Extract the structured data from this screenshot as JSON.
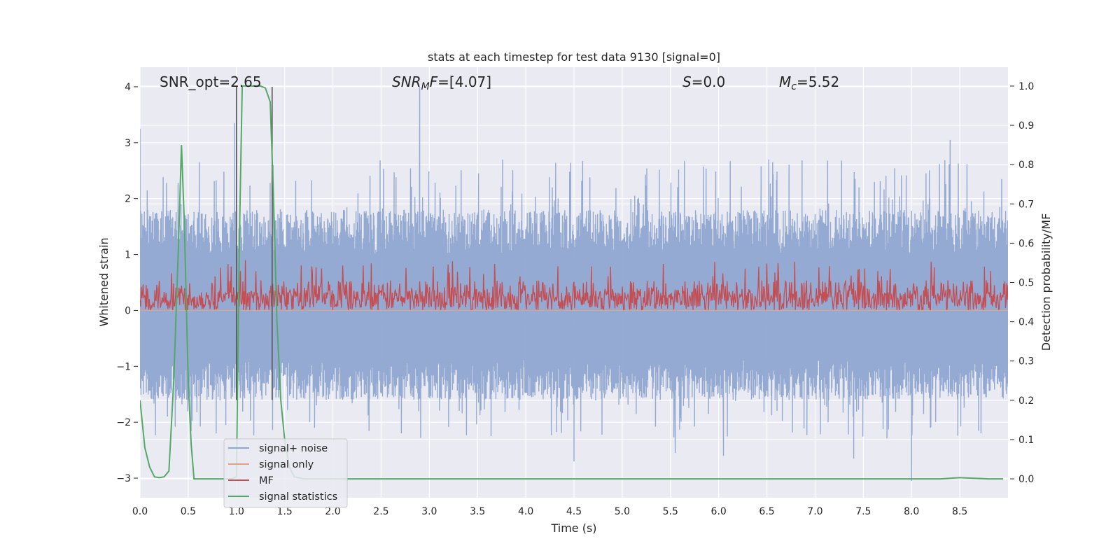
{
  "chart_data": {
    "type": "line",
    "title": "stats at each timestep for test data 9130 [signal=0]",
    "xlabel": "Time (s)",
    "ylabel_left": "Whitened strain",
    "ylabel_right": "Detection probability/MF",
    "xlim": [
      0.0,
      9.0
    ],
    "ylim_left": [
      -3.35,
      4.35
    ],
    "ylim_right": [
      -0.048,
      1.048
    ],
    "x_ticks": [
      "0.0",
      "0.5",
      "1.0",
      "1.5",
      "2.0",
      "2.5",
      "3.0",
      "3.5",
      "4.0",
      "4.5",
      "5.0",
      "5.5",
      "6.0",
      "6.5",
      "7.0",
      "7.5",
      "8.0",
      "8.5"
    ],
    "y_ticks_left": [
      "−3",
      "−2",
      "−1",
      "0",
      "1",
      "2",
      "3",
      "4"
    ],
    "y_ticks_right": [
      "0.0",
      "0.1",
      "0.2",
      "0.3",
      "0.4",
      "0.5",
      "0.6",
      "0.7",
      "0.8",
      "0.9",
      "1.0"
    ],
    "grid": true,
    "legend_position": "lower-left",
    "annotations": [
      {
        "name": "snr-opt",
        "text": "SNR_opt=2.65"
      },
      {
        "name": "snr-mf",
        "text": "SNR_MF=[4.07]"
      },
      {
        "name": "s-value",
        "text": "S=0.0"
      },
      {
        "name": "mc-value",
        "text": "M_c=5.52"
      }
    ],
    "vertical_lines": [
      1.0,
      1.37
    ],
    "series": [
      {
        "name": "signal+ noise",
        "axis": "left",
        "color": "#8fa6d0",
        "description_values": {
          "mean": 0.0,
          "upper_envelope_typ": 1.8,
          "lower_envelope_typ": -1.6,
          "max": 4.0,
          "min": -3.05
        },
        "spikes": [
          [
            0.0,
            3.25
          ],
          [
            0.98,
            3.35
          ],
          [
            2.9,
            4.0
          ],
          [
            4.5,
            -2.7
          ],
          [
            5.55,
            -2.55
          ],
          [
            6.05,
            -2.6
          ],
          [
            7.4,
            -2.65
          ],
          [
            8.0,
            -3.05
          ],
          [
            8.4,
            3.05
          ]
        ]
      },
      {
        "name": "signal only",
        "axis": "left",
        "color": "#e8a07a",
        "x": [
          0.0,
          9.0
        ],
        "y": [
          0.0,
          0.0
        ]
      },
      {
        "name": "MF",
        "axis": "left",
        "color": "#c44e52",
        "description_values": {
          "baseline": 0.25,
          "low": 0.0,
          "high_typ": 0.6,
          "max": 0.9
        }
      },
      {
        "name": "signal statistics",
        "axis": "right",
        "color": "#55a868",
        "x": [
          0.0,
          0.05,
          0.1,
          0.15,
          0.2,
          0.25,
          0.3,
          0.35,
          0.4,
          0.43,
          0.46,
          0.5,
          0.53,
          0.56,
          0.6,
          0.65,
          0.7,
          0.75,
          0.8,
          0.85,
          0.9,
          0.95,
          1.0,
          1.03,
          1.06,
          1.1,
          1.15,
          1.2,
          1.25,
          1.3,
          1.35,
          1.38,
          1.42,
          1.46,
          1.5,
          1.55,
          1.6,
          1.7,
          2.0,
          3.0,
          4.0,
          5.0,
          6.0,
          7.0,
          7.5,
          8.0,
          8.3,
          8.5,
          8.6,
          8.8,
          8.95
        ],
        "y": [
          0.2,
          0.08,
          0.03,
          0.005,
          0.003,
          0.005,
          0.02,
          0.25,
          0.6,
          0.85,
          0.65,
          0.25,
          0.09,
          0.0,
          0.0,
          0.0,
          0.0,
          0.0,
          0.0,
          0.0,
          0.0,
          0.0,
          0.005,
          0.6,
          1.0,
          1.0,
          1.0,
          1.0,
          1.0,
          0.995,
          0.96,
          0.75,
          0.4,
          0.2,
          0.1,
          0.03,
          0.005,
          0.0,
          0.0,
          0.0,
          0.0,
          0.0,
          0.0,
          0.0,
          0.0,
          0.0,
          0.0,
          0.003,
          0.002,
          0.0,
          0.0
        ]
      }
    ]
  }
}
